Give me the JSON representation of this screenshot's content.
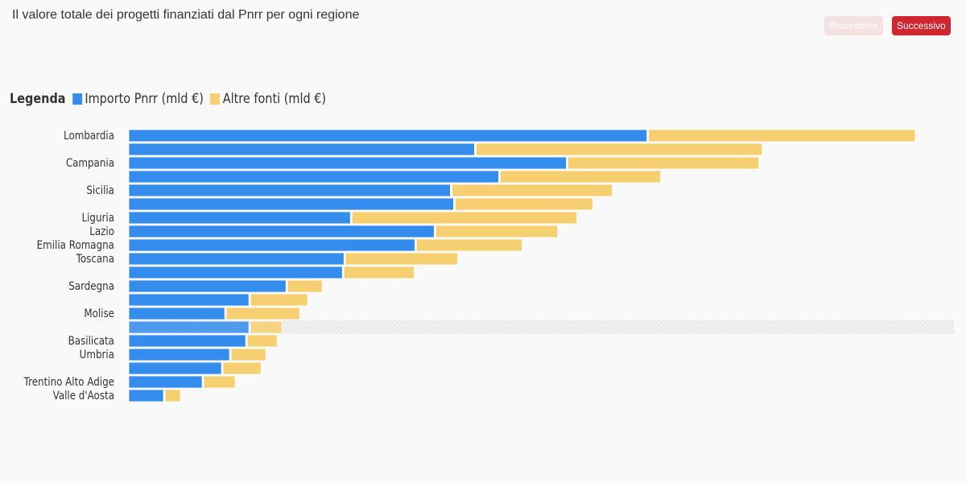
{
  "title": "Il valore totale dei progetti finanziati dal Pnrr per ogni regione",
  "buttons": {
    "prev": "Precedente",
    "next": "Successivo"
  },
  "legend": {
    "title": "Legenda"
  },
  "colors": {
    "pnrr": "#348ced",
    "altre": "#f6cf70"
  },
  "chart_data": {
    "type": "bar",
    "orientation": "horizontal",
    "stacked": true,
    "title": "Il valore totale dei progetti finanziati dal Pnrr per ogni regione",
    "categories": [
      "Lombardia",
      "",
      "Campania",
      "",
      "Sicilia",
      "",
      "Liguria",
      "Lazio",
      "Emilia Romagna",
      "Toscana",
      "",
      "Sardegna",
      "",
      "Molise",
      "",
      "Basilicata",
      "Umbria",
      "",
      "Trentino Alto Adige",
      "Valle d'Aosta"
    ],
    "series": [
      {
        "name": "Importo Pnrr (mld €)",
        "values": [
          16.1,
          10.75,
          13.6,
          11.5,
          10.0,
          10.1,
          6.9,
          9.5,
          8.9,
          6.7,
          6.65,
          4.9,
          3.75,
          3.0,
          3.75,
          3.65,
          3.15,
          2.9,
          2.3,
          1.1
        ]
      },
      {
        "name": "Altre fonti (mld €)",
        "values": [
          8.3,
          8.9,
          5.95,
          5.0,
          5.0,
          4.3,
          7.0,
          3.8,
          3.3,
          3.5,
          2.2,
          1.1,
          1.8,
          2.3,
          1.0,
          0.95,
          1.1,
          1.2,
          1.0,
          0.5
        ]
      }
    ],
    "highlighted_index": 14,
    "xlim": [
      0,
      25.6
    ],
    "grid": false,
    "legend_position": "top-left"
  }
}
